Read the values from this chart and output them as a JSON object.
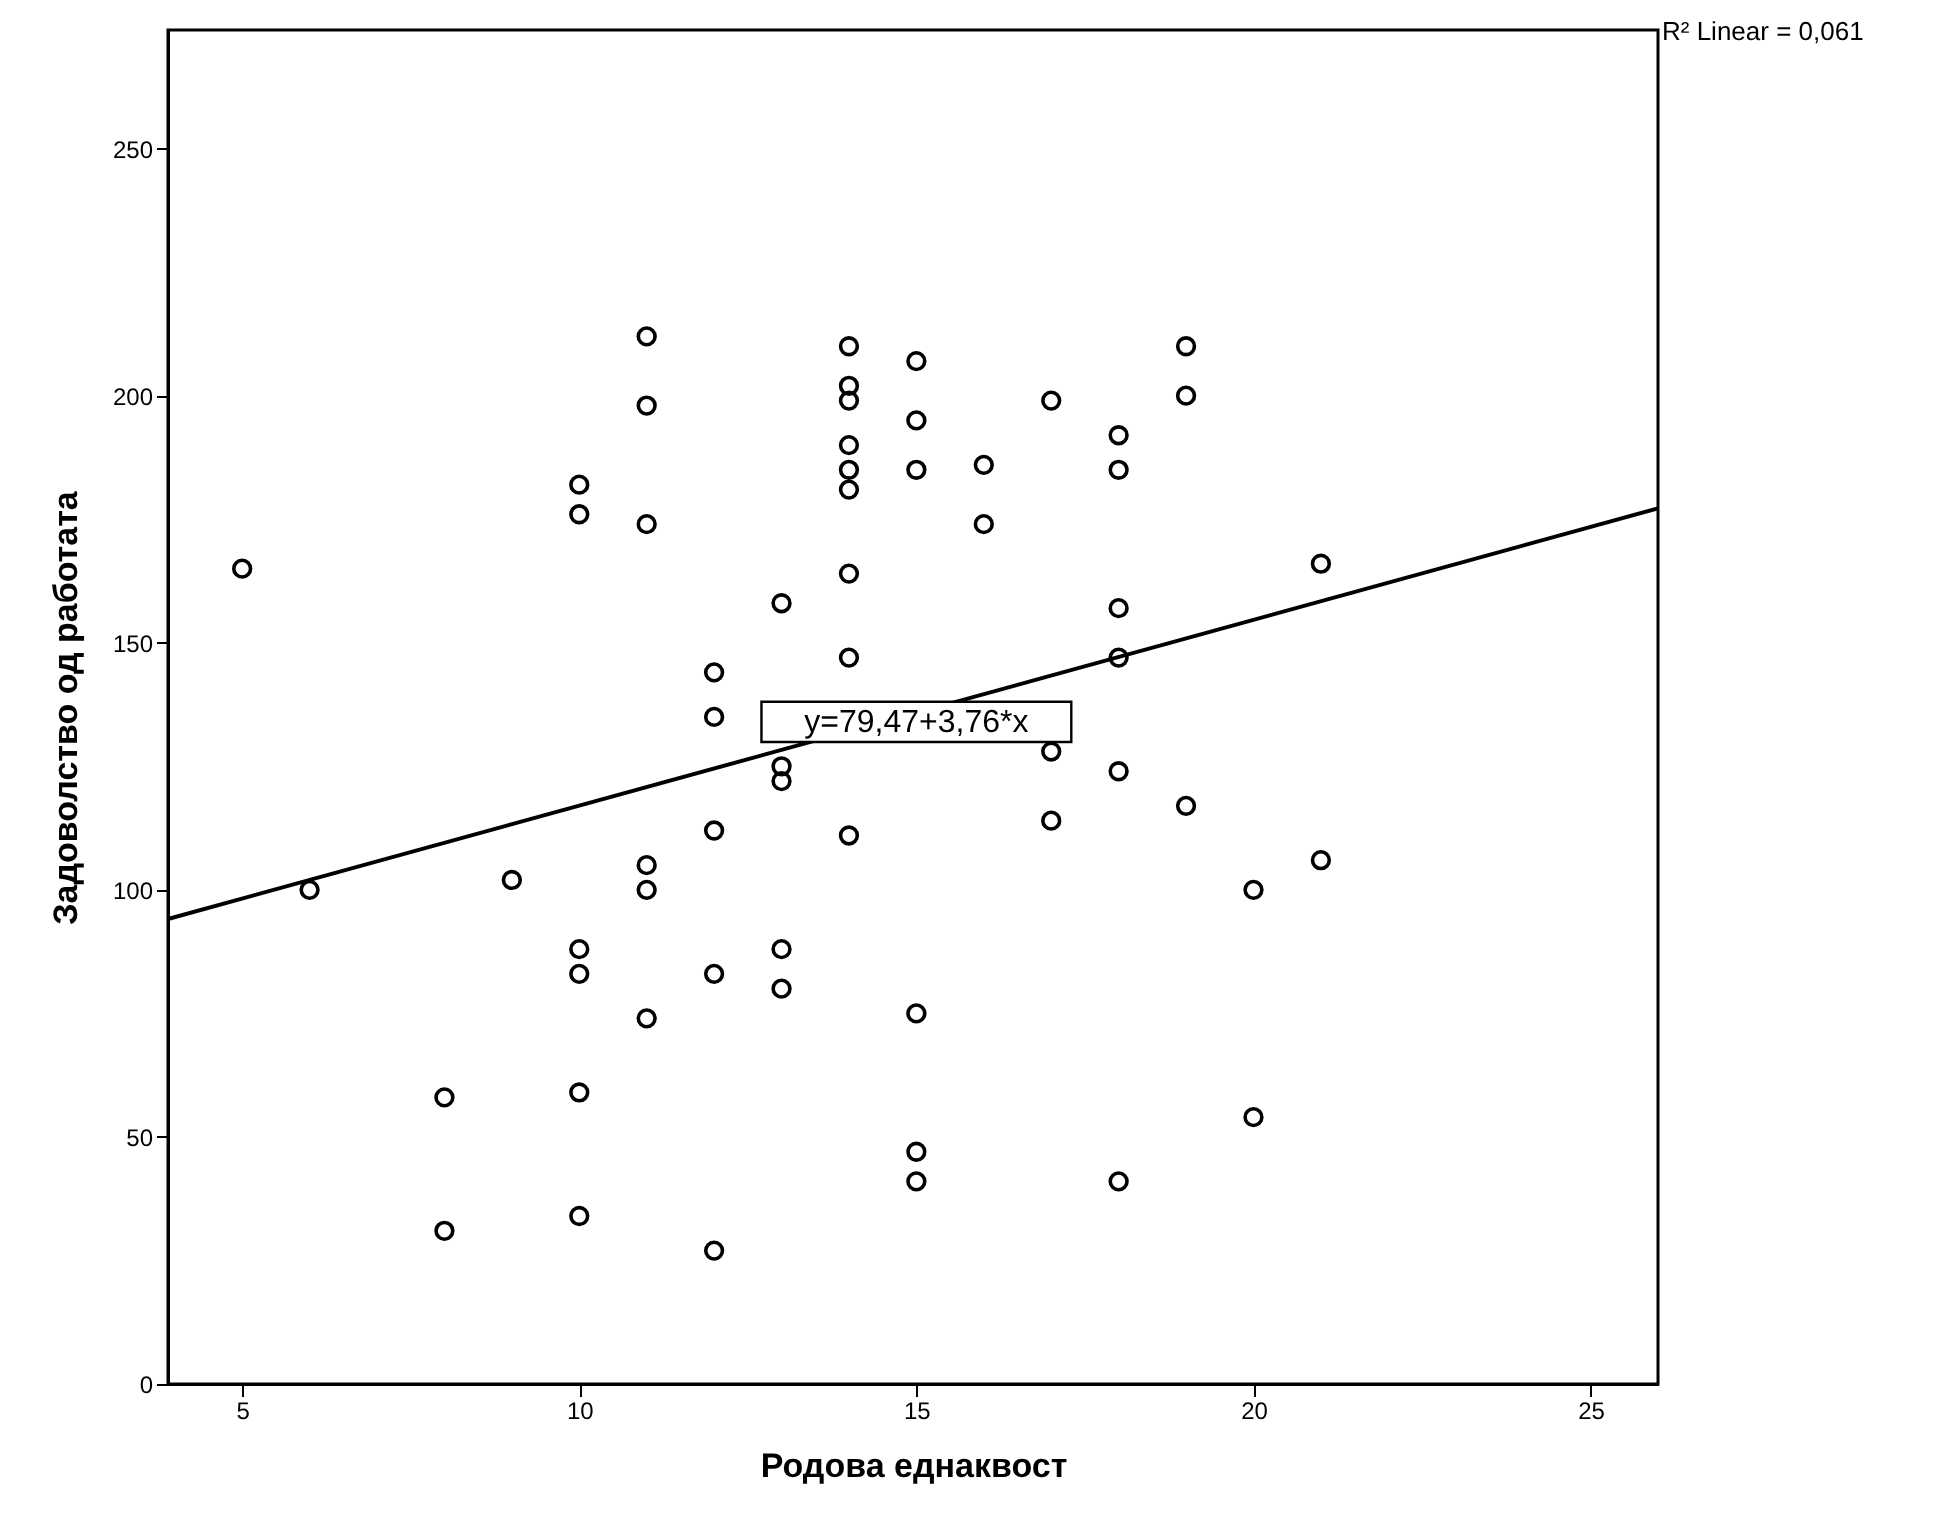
{
  "chart_data": {
    "type": "scatter",
    "xlabel": "Родова еднаквост",
    "ylabel": "Задоволство од работата",
    "annotations": [
      "R² Linear = 0,061",
      {
        "text": "y=79,47+3,76*x",
        "x": 15,
        "y": 134
      }
    ],
    "xlim": [
      3.9,
      26
    ],
    "ylim": [
      0,
      274
    ],
    "xticks": [
      5,
      10,
      15,
      20,
      25
    ],
    "yticks": [
      0,
      50,
      100,
      150,
      200,
      250
    ],
    "grid": false,
    "series": [
      {
        "marker": "circle",
        "color": "#000000",
        "x": [
          5,
          6,
          8,
          8,
          9,
          10,
          10,
          10,
          10,
          10,
          10,
          11,
          11,
          11,
          11,
          11,
          11,
          12,
          12,
          12,
          12,
          12,
          13,
          13,
          13,
          13,
          13,
          14,
          14,
          14,
          14,
          14,
          14,
          14,
          14,
          14,
          15,
          15,
          15,
          15,
          15,
          15,
          16,
          16,
          17,
          17,
          17,
          18,
          18,
          18,
          18,
          18,
          18,
          19,
          19,
          19,
          20,
          20,
          21,
          21
        ],
        "values": [
          165,
          100,
          58,
          31,
          102,
          182,
          176,
          88,
          83,
          59,
          34,
          212,
          198,
          174,
          105,
          100,
          74,
          144,
          135,
          112,
          83,
          27,
          158,
          125,
          122,
          88,
          80,
          210,
          202,
          199,
          190,
          185,
          181,
          164,
          147,
          111,
          207,
          195,
          185,
          75,
          47,
          41,
          186,
          174,
          199,
          128,
          114,
          192,
          185,
          157,
          147,
          124,
          41,
          210,
          200,
          117,
          100,
          54,
          166,
          106
        ]
      },
      {
        "type": "line",
        "color": "#000000",
        "x": [
          3.9,
          26
        ],
        "values": [
          94.1,
          177.2
        ]
      }
    ]
  }
}
